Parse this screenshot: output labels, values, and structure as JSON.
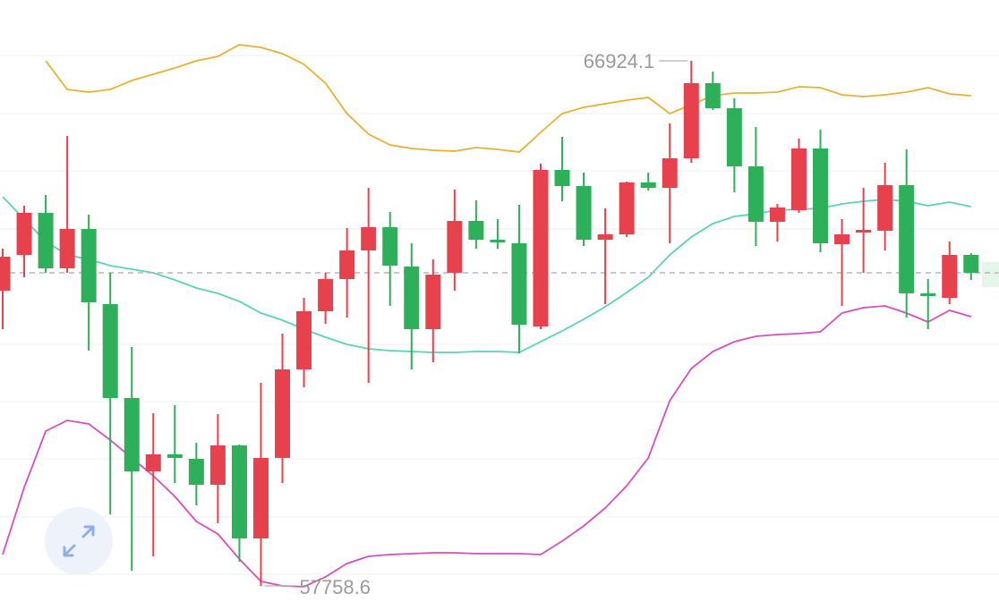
{
  "chart_data": {
    "type": "candlestick",
    "up_color": "#e8414e",
    "down_color": "#2eaf5a",
    "ylim": [
      57337,
      67986
    ],
    "open": [
      62911,
      63536,
      64270,
      63302,
      63989,
      62677,
      61038,
      59757,
      60054,
      59976,
      59523,
      60210,
      58586,
      59992,
      61537,
      62552,
      63114,
      63614,
      64020,
      63333,
      62240,
      63224,
      64129,
      63801,
      63739,
      62287,
      65019,
      64738,
      63801,
      63895,
      64801,
      64707,
      65222,
      66534,
      66097,
      65082,
      64114,
      64317,
      65394,
      63723,
      63926,
      63958,
      64754,
      62865,
      62786,
      63536
    ],
    "high": [
      63645,
      64395,
      64582,
      65613,
      64239,
      63224,
      61928,
      60772,
      60913,
      60257,
      60757,
      60226,
      61303,
      62162,
      62786,
      63224,
      64004,
      64707,
      64285,
      63739,
      63458,
      64676,
      64488,
      64161,
      64410,
      65129,
      65597,
      64972,
      64348,
      64817,
      64972,
      65831,
      66924.1,
      66737,
      66268,
      65769,
      64426,
      65566,
      65722,
      64161,
      64707,
      65144,
      65378,
      63114,
      63770,
      63567
    ],
    "low": [
      62240,
      63146,
      63224,
      63224,
      61865,
      59008,
      58024,
      58274,
      59554,
      59164,
      58852,
      58180,
      57758.6,
      59554,
      61225,
      62334,
      62443,
      61303,
      62646,
      61537,
      61662,
      62911,
      63645,
      63645,
      61818,
      62240,
      64473,
      63692,
      62677,
      63848,
      64660,
      63739,
      65144,
      66065,
      64629,
      63692,
      63770,
      64270,
      63583,
      62646,
      63224,
      63614,
      62443,
      62240,
      62677,
      63099
    ],
    "close": [
      63505,
      64270,
      63302,
      63989,
      62708,
      61038,
      59757,
      60054,
      59992,
      59523,
      60210,
      58586,
      59992,
      61537,
      62552,
      63114,
      63614,
      64020,
      63349,
      62240,
      63192,
      64129,
      63801,
      63755,
      62318,
      65019,
      64738,
      63801,
      63895,
      64801,
      64707,
      65222,
      66534,
      66097,
      65082,
      64114,
      64364,
      65394,
      63739,
      63895,
      63973,
      64754,
      62865,
      62818,
      63536,
      63224
    ],
    "overlays": [
      {
        "color": "#e8b130",
        "values": [
          null,
          null,
          66924,
          66425,
          66378,
          66425,
          66581,
          66690,
          66799,
          66924,
          67002,
          67205,
          67158,
          67049,
          66862,
          66534,
          66003,
          65644,
          65456,
          65394,
          65363,
          65347,
          65410,
          65378,
          65332,
          65675,
          66003,
          66112,
          66175,
          66237,
          66284,
          66003,
          66159,
          66315,
          66362,
          66362,
          66378,
          66471,
          66456,
          66331,
          66300,
          66331,
          66378,
          66456,
          66346,
          66315
        ]
      },
      {
        "color": "#5ad2b4",
        "values": [
          64551,
          64161,
          63770,
          63536,
          63458,
          63349,
          63286,
          63224,
          63099,
          62958,
          62865,
          62724,
          62521,
          62396,
          62240,
          62100,
          61975,
          61897,
          61865,
          61850,
          61834,
          61834,
          61850,
          61850,
          61834,
          62022,
          62209,
          62412,
          62630,
          62880,
          63146,
          63536,
          63848,
          64083,
          64207,
          64254,
          64317,
          64332,
          64348,
          64426,
          64473,
          64504,
          64473,
          64395,
          64457,
          64379
        ]
      },
      {
        "color": "#d64fc0",
        "values": [
          58305,
          59476,
          60460,
          60647,
          60585,
          60304,
          59992,
          59679,
          59320,
          58883,
          58664,
          58227,
          57837,
          57759,
          57743,
          57915,
          58149,
          58274,
          58305,
          58321,
          58336,
          58336,
          58321,
          58321,
          58321,
          58305,
          58540,
          58805,
          59117,
          59508,
          59992,
          60991,
          61553,
          61850,
          62022,
          62115,
          62146,
          62162,
          62193,
          62521,
          62615,
          62646,
          62521,
          62365,
          62568,
          62459
        ]
      }
    ]
  }
}
